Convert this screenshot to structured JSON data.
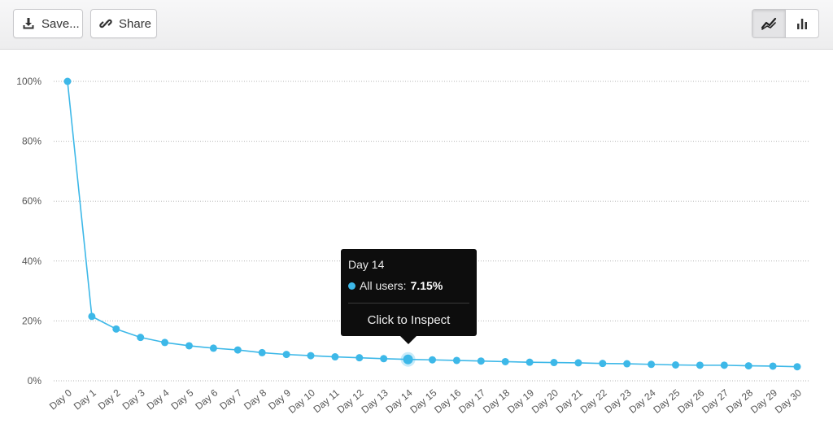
{
  "toolbar": {
    "save_label": "Save...",
    "share_label": "Share",
    "save_icon": "download-icon",
    "share_icon": "link-icon",
    "view_toggle": {
      "active": "line",
      "options": [
        "line-chart-icon",
        "bar-chart-icon"
      ]
    }
  },
  "colors": {
    "series": "#3db8e8",
    "grid": "#b5b5b5",
    "tooltip_bg": "#0d0d0d"
  },
  "chart_data": {
    "type": "line",
    "title": "",
    "xlabel": "",
    "ylabel": "",
    "ylim": [
      0,
      100
    ],
    "yticks": [
      "0%",
      "20%",
      "40%",
      "60%",
      "80%",
      "100%"
    ],
    "grid": true,
    "categories": [
      "Day 0",
      "Day 1",
      "Day 2",
      "Day 3",
      "Day 4",
      "Day 5",
      "Day 6",
      "Day 7",
      "Day 8",
      "Day 9",
      "Day 10",
      "Day 11",
      "Day 12",
      "Day 13",
      "Day 14",
      "Day 15",
      "Day 16",
      "Day 17",
      "Day 18",
      "Day 19",
      "Day 20",
      "Day 21",
      "Day 22",
      "Day 23",
      "Day 24",
      "Day 25",
      "Day 26",
      "Day 27",
      "Day 28",
      "Day 29",
      "Day 30"
    ],
    "series": [
      {
        "name": "All users",
        "values": [
          100,
          21.5,
          17.3,
          14.5,
          12.8,
          11.7,
          10.9,
          10.3,
          9.4,
          8.8,
          8.4,
          8.0,
          7.7,
          7.4,
          7.15,
          7.0,
          6.8,
          6.6,
          6.4,
          6.2,
          6.1,
          6.0,
          5.8,
          5.7,
          5.5,
          5.3,
          5.2,
          5.2,
          5.0,
          4.9,
          4.7
        ]
      }
    ],
    "highlight_index": 14
  },
  "tooltip": {
    "title": "Day 14",
    "series_label": "All users:",
    "value": "7.15%",
    "action": "Click to Inspect"
  }
}
